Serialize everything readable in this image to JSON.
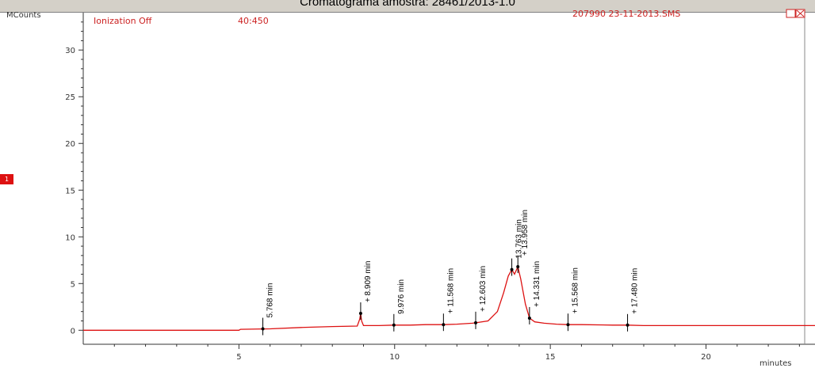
{
  "window": {
    "title": "Cromatograma amostra: 28461/2013-1.0"
  },
  "header": {
    "ionization": "Ionization Off",
    "mass_range": "40:450",
    "file": "207990 23-11-2013.SMS",
    "window_button_icon": "restore-close-icon"
  },
  "trace_marker": "1",
  "chart_data": {
    "type": "line",
    "ylabel": "MCounts",
    "xlabel": "minutes",
    "xlim": [
      0,
      23.5
    ],
    "ylim": [
      -1.5,
      34
    ],
    "xticks": [
      5,
      10,
      15,
      20
    ],
    "yticks": [
      0,
      5,
      10,
      15,
      20,
      25,
      30
    ],
    "grid": false,
    "colors": {
      "trace": "#dd1111",
      "peak_marker": "#000000",
      "axis": "#333333"
    },
    "series": [
      {
        "x": [
          0,
          5.0,
          5.05,
          6.0,
          7.0,
          8.0,
          8.8,
          8.88,
          8.909,
          8.94,
          9.0,
          9.5,
          9.976,
          10.5,
          11.0,
          11.568,
          12.0,
          12.5,
          12.603,
          13.0,
          13.3,
          13.5,
          13.65,
          13.763,
          13.85,
          13.958,
          14.05,
          14.2,
          14.331,
          14.5,
          14.8,
          15.2,
          15.568,
          16.0,
          17.0,
          17.48,
          18.0,
          20.0,
          23.5
        ],
        "y": [
          0,
          0,
          0.1,
          0.15,
          0.3,
          0.4,
          0.45,
          1.2,
          1.8,
          1.0,
          0.5,
          0.5,
          0.55,
          0.55,
          0.6,
          0.6,
          0.65,
          0.75,
          0.8,
          1.0,
          2.0,
          4.0,
          5.8,
          6.5,
          6.0,
          6.8,
          5.5,
          2.8,
          1.3,
          0.9,
          0.75,
          0.65,
          0.6,
          0.6,
          0.55,
          0.55,
          0.5,
          0.5,
          0.5
        ]
      }
    ],
    "peaks": [
      {
        "x": 5.768,
        "y": 0.15,
        "label": "5.768 min"
      },
      {
        "x": 8.909,
        "y": 1.8,
        "label": "+ 8.909 min"
      },
      {
        "x": 9.976,
        "y": 0.55,
        "label": "9.976 min"
      },
      {
        "x": 11.568,
        "y": 0.6,
        "label": "+ 11.568 min"
      },
      {
        "x": 12.603,
        "y": 0.8,
        "label": "+ 12.603 min"
      },
      {
        "x": 13.763,
        "y": 6.5,
        "label": "13.763 min"
      },
      {
        "x": 13.958,
        "y": 6.8,
        "label": "+ 13.958 min"
      },
      {
        "x": 14.331,
        "y": 1.3,
        "label": "+ 14.331 min"
      },
      {
        "x": 15.568,
        "y": 0.6,
        "label": "+ 15.568 min"
      },
      {
        "x": 17.48,
        "y": 0.55,
        "label": "+ 17.480 min"
      }
    ]
  }
}
